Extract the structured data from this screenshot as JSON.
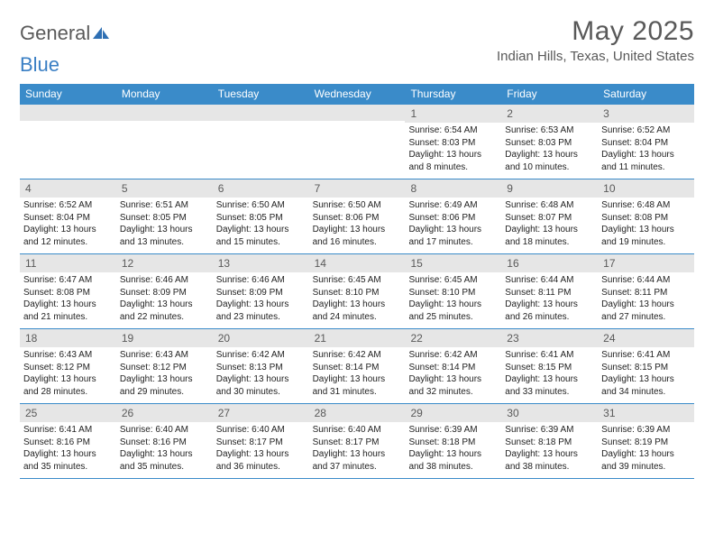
{
  "brand": {
    "part1": "General",
    "part2": "Blue"
  },
  "title": "May 2025",
  "location": "Indian Hills, Texas, United States",
  "colors": {
    "header_bar": "#3a8bc9",
    "daynum_bg": "#e6e6e6",
    "text_gray": "#595959",
    "rule": "#3a8bc9"
  },
  "weekdays": [
    "Sunday",
    "Monday",
    "Tuesday",
    "Wednesday",
    "Thursday",
    "Friday",
    "Saturday"
  ],
  "weeks": [
    [
      {
        "n": "",
        "sr": "",
        "ss": "",
        "dl": ""
      },
      {
        "n": "",
        "sr": "",
        "ss": "",
        "dl": ""
      },
      {
        "n": "",
        "sr": "",
        "ss": "",
        "dl": ""
      },
      {
        "n": "",
        "sr": "",
        "ss": "",
        "dl": ""
      },
      {
        "n": "1",
        "sr": "Sunrise: 6:54 AM",
        "ss": "Sunset: 8:03 PM",
        "dl": "Daylight: 13 hours and 8 minutes."
      },
      {
        "n": "2",
        "sr": "Sunrise: 6:53 AM",
        "ss": "Sunset: 8:03 PM",
        "dl": "Daylight: 13 hours and 10 minutes."
      },
      {
        "n": "3",
        "sr": "Sunrise: 6:52 AM",
        "ss": "Sunset: 8:04 PM",
        "dl": "Daylight: 13 hours and 11 minutes."
      }
    ],
    [
      {
        "n": "4",
        "sr": "Sunrise: 6:52 AM",
        "ss": "Sunset: 8:04 PM",
        "dl": "Daylight: 13 hours and 12 minutes."
      },
      {
        "n": "5",
        "sr": "Sunrise: 6:51 AM",
        "ss": "Sunset: 8:05 PM",
        "dl": "Daylight: 13 hours and 13 minutes."
      },
      {
        "n": "6",
        "sr": "Sunrise: 6:50 AM",
        "ss": "Sunset: 8:05 PM",
        "dl": "Daylight: 13 hours and 15 minutes."
      },
      {
        "n": "7",
        "sr": "Sunrise: 6:50 AM",
        "ss": "Sunset: 8:06 PM",
        "dl": "Daylight: 13 hours and 16 minutes."
      },
      {
        "n": "8",
        "sr": "Sunrise: 6:49 AM",
        "ss": "Sunset: 8:06 PM",
        "dl": "Daylight: 13 hours and 17 minutes."
      },
      {
        "n": "9",
        "sr": "Sunrise: 6:48 AM",
        "ss": "Sunset: 8:07 PM",
        "dl": "Daylight: 13 hours and 18 minutes."
      },
      {
        "n": "10",
        "sr": "Sunrise: 6:48 AM",
        "ss": "Sunset: 8:08 PM",
        "dl": "Daylight: 13 hours and 19 minutes."
      }
    ],
    [
      {
        "n": "11",
        "sr": "Sunrise: 6:47 AM",
        "ss": "Sunset: 8:08 PM",
        "dl": "Daylight: 13 hours and 21 minutes."
      },
      {
        "n": "12",
        "sr": "Sunrise: 6:46 AM",
        "ss": "Sunset: 8:09 PM",
        "dl": "Daylight: 13 hours and 22 minutes."
      },
      {
        "n": "13",
        "sr": "Sunrise: 6:46 AM",
        "ss": "Sunset: 8:09 PM",
        "dl": "Daylight: 13 hours and 23 minutes."
      },
      {
        "n": "14",
        "sr": "Sunrise: 6:45 AM",
        "ss": "Sunset: 8:10 PM",
        "dl": "Daylight: 13 hours and 24 minutes."
      },
      {
        "n": "15",
        "sr": "Sunrise: 6:45 AM",
        "ss": "Sunset: 8:10 PM",
        "dl": "Daylight: 13 hours and 25 minutes."
      },
      {
        "n": "16",
        "sr": "Sunrise: 6:44 AM",
        "ss": "Sunset: 8:11 PM",
        "dl": "Daylight: 13 hours and 26 minutes."
      },
      {
        "n": "17",
        "sr": "Sunrise: 6:44 AM",
        "ss": "Sunset: 8:11 PM",
        "dl": "Daylight: 13 hours and 27 minutes."
      }
    ],
    [
      {
        "n": "18",
        "sr": "Sunrise: 6:43 AM",
        "ss": "Sunset: 8:12 PM",
        "dl": "Daylight: 13 hours and 28 minutes."
      },
      {
        "n": "19",
        "sr": "Sunrise: 6:43 AM",
        "ss": "Sunset: 8:12 PM",
        "dl": "Daylight: 13 hours and 29 minutes."
      },
      {
        "n": "20",
        "sr": "Sunrise: 6:42 AM",
        "ss": "Sunset: 8:13 PM",
        "dl": "Daylight: 13 hours and 30 minutes."
      },
      {
        "n": "21",
        "sr": "Sunrise: 6:42 AM",
        "ss": "Sunset: 8:14 PM",
        "dl": "Daylight: 13 hours and 31 minutes."
      },
      {
        "n": "22",
        "sr": "Sunrise: 6:42 AM",
        "ss": "Sunset: 8:14 PM",
        "dl": "Daylight: 13 hours and 32 minutes."
      },
      {
        "n": "23",
        "sr": "Sunrise: 6:41 AM",
        "ss": "Sunset: 8:15 PM",
        "dl": "Daylight: 13 hours and 33 minutes."
      },
      {
        "n": "24",
        "sr": "Sunrise: 6:41 AM",
        "ss": "Sunset: 8:15 PM",
        "dl": "Daylight: 13 hours and 34 minutes."
      }
    ],
    [
      {
        "n": "25",
        "sr": "Sunrise: 6:41 AM",
        "ss": "Sunset: 8:16 PM",
        "dl": "Daylight: 13 hours and 35 minutes."
      },
      {
        "n": "26",
        "sr": "Sunrise: 6:40 AM",
        "ss": "Sunset: 8:16 PM",
        "dl": "Daylight: 13 hours and 35 minutes."
      },
      {
        "n": "27",
        "sr": "Sunrise: 6:40 AM",
        "ss": "Sunset: 8:17 PM",
        "dl": "Daylight: 13 hours and 36 minutes."
      },
      {
        "n": "28",
        "sr": "Sunrise: 6:40 AM",
        "ss": "Sunset: 8:17 PM",
        "dl": "Daylight: 13 hours and 37 minutes."
      },
      {
        "n": "29",
        "sr": "Sunrise: 6:39 AM",
        "ss": "Sunset: 8:18 PM",
        "dl": "Daylight: 13 hours and 38 minutes."
      },
      {
        "n": "30",
        "sr": "Sunrise: 6:39 AM",
        "ss": "Sunset: 8:18 PM",
        "dl": "Daylight: 13 hours and 38 minutes."
      },
      {
        "n": "31",
        "sr": "Sunrise: 6:39 AM",
        "ss": "Sunset: 8:19 PM",
        "dl": "Daylight: 13 hours and 39 minutes."
      }
    ]
  ]
}
